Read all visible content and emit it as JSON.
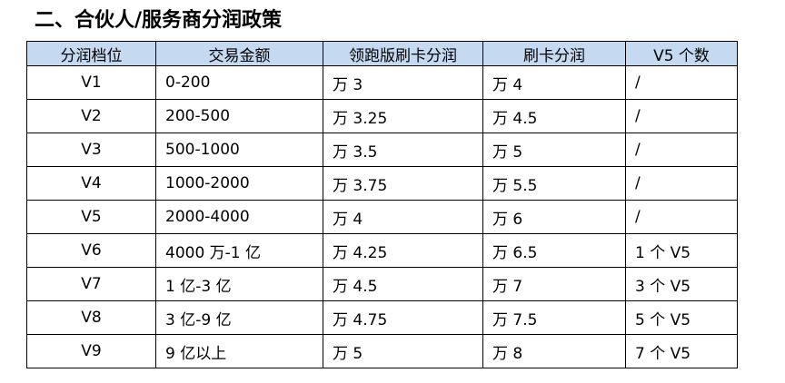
{
  "header": {
    "title": "二、合伙人/服务商分润政策"
  },
  "table": {
    "columns": [
      "分润档位",
      "交易金额",
      "领跑版刷卡分润",
      "刷卡分润",
      "V5 个数"
    ],
    "rows": [
      [
        "V1",
        "0-200",
        "万 3",
        "万 4",
        "/"
      ],
      [
        "V2",
        "200-500",
        "万 3.25",
        "万 4.5",
        "/"
      ],
      [
        "V3",
        "500-1000",
        "万 3.5",
        "万 5",
        "/"
      ],
      [
        "V4",
        "1000-2000",
        "万 3.75",
        "万 5.5",
        "/"
      ],
      [
        "V5",
        "2000-4000",
        "万 4",
        "万 6",
        "/"
      ],
      [
        "V6",
        "4000 万-1 亿",
        "万 4.25",
        "万 6.5",
        "1 个 V5"
      ],
      [
        "V7",
        "1 亿-3 亿",
        "万 4.5",
        "万 7",
        "3 个 V5"
      ],
      [
        "V8",
        "3 亿-9 亿",
        "万 4.75",
        "万 7.5",
        "5 个 V5"
      ],
      [
        "V9",
        "9 亿以上",
        "万 5",
        "万 8",
        "7 个 V5"
      ]
    ]
  }
}
